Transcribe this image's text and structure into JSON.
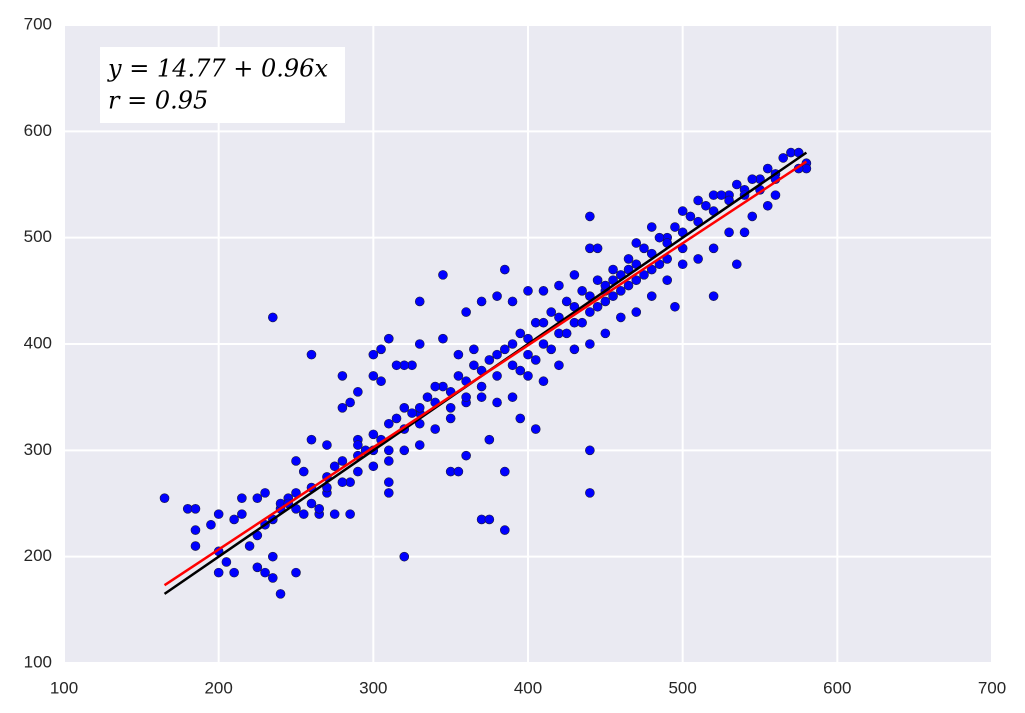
{
  "chart_data": {
    "type": "scatter",
    "annotations": [
      "y = 14.77 + 0.96x",
      "r = 0.95"
    ],
    "xlim": [
      100,
      700
    ],
    "xticks": [
      100,
      200,
      300,
      400,
      500,
      600,
      700
    ],
    "ylim": [
      100,
      700
    ],
    "yticks": [
      100,
      200,
      300,
      400,
      500,
      600,
      700
    ],
    "grid": true,
    "series": [
      {
        "mode": "markers",
        "color": "#0000ff",
        "x": [
          165,
          180,
          185,
          185,
          185,
          195,
          200,
          200,
          200,
          205,
          210,
          210,
          215,
          215,
          220,
          225,
          225,
          230,
          230,
          235,
          235,
          240,
          235,
          250,
          260,
          255,
          260,
          270,
          280,
          285,
          290,
          300,
          305,
          310,
          320,
          330,
          345,
          370,
          375,
          385,
          385,
          440,
          440,
          440,
          520,
          535,
          495,
          385,
          405,
          395,
          375,
          360,
          350,
          355,
          265,
          275,
          285,
          310,
          310,
          330,
          345,
          330,
          325,
          320,
          315,
          300,
          305,
          280,
          290,
          300,
          250,
          245,
          250,
          260,
          270,
          275,
          285,
          290,
          295,
          360,
          370,
          380,
          390,
          400,
          410,
          420,
          430,
          440,
          445,
          450,
          455,
          465,
          470,
          480,
          490,
          500,
          510,
          520,
          530,
          540,
          550,
          560,
          570,
          575,
          580,
          580,
          575,
          560,
          555,
          545,
          540,
          530,
          520,
          510,
          500,
          490,
          480,
          470,
          460,
          450,
          440,
          430,
          420,
          410,
          400,
          390,
          380,
          370,
          360,
          350,
          340,
          330,
          320,
          310,
          300,
          290,
          280,
          270,
          260,
          250,
          240,
          235,
          230,
          225,
          240,
          245,
          255,
          265,
          270,
          280,
          290,
          300,
          305,
          310,
          315,
          320,
          325,
          330,
          335,
          340,
          345,
          350,
          355,
          360,
          365,
          370,
          375,
          380,
          385,
          390,
          395,
          400,
          405,
          410,
          415,
          420,
          425,
          430,
          435,
          440,
          445,
          450,
          455,
          460,
          465,
          470,
          475,
          480,
          485,
          490,
          495,
          500,
          505,
          510,
          515,
          520,
          525,
          530,
          535,
          540,
          545,
          550,
          555,
          560,
          565,
          350,
          360,
          370,
          380,
          390,
          400,
          410,
          420,
          430,
          440,
          450,
          460,
          470,
          480,
          490,
          500,
          340,
          330,
          320,
          310,
          355,
          365,
          395,
          405,
          415,
          425,
          435,
          445,
          455,
          465,
          475,
          485
        ],
        "values": [
          255,
          245,
          245,
          210,
          225,
          230,
          240,
          205,
          185,
          195,
          185,
          235,
          240,
          255,
          210,
          190,
          255,
          260,
          185,
          180,
          200,
          165,
          425,
          185,
          390,
          280,
          310,
          305,
          370,
          345,
          355,
          390,
          395,
          405,
          200,
          440,
          465,
          235,
          235,
          225,
          280,
          260,
          300,
          520,
          445,
          475,
          435,
          470,
          320,
          330,
          310,
          295,
          280,
          280,
          240,
          240,
          240,
          270,
          260,
          335,
          405,
          400,
          380,
          380,
          380,
          370,
          365,
          340,
          310,
          285,
          290,
          255,
          260,
          265,
          260,
          285,
          270,
          305,
          300,
          430,
          440,
          445,
          440,
          450,
          450,
          455,
          465,
          490,
          490,
          450,
          460,
          470,
          495,
          510,
          500,
          525,
          535,
          540,
          540,
          545,
          555,
          560,
          580,
          580,
          570,
          565,
          565,
          540,
          530,
          520,
          505,
          505,
          490,
          480,
          475,
          460,
          445,
          430,
          425,
          410,
          400,
          395,
          380,
          365,
          370,
          350,
          345,
          350,
          345,
          330,
          320,
          305,
          300,
          290,
          300,
          280,
          270,
          265,
          250,
          245,
          245,
          235,
          230,
          220,
          250,
          250,
          240,
          245,
          275,
          290,
          295,
          315,
          310,
          325,
          330,
          320,
          335,
          340,
          350,
          345,
          360,
          355,
          370,
          365,
          380,
          375,
          385,
          390,
          395,
          400,
          410,
          405,
          420,
          420,
          430,
          425,
          440,
          435,
          450,
          445,
          460,
          455,
          470,
          465,
          480,
          475,
          490,
          485,
          500,
          495,
          510,
          505,
          520,
          515,
          530,
          525,
          540,
          535,
          550,
          540,
          555,
          545,
          565,
          555,
          575,
          340,
          350,
          360,
          370,
          380,
          390,
          400,
          410,
          420,
          430,
          440,
          450,
          460,
          470,
          480,
          490,
          360,
          325,
          340,
          300,
          390,
          395,
          375,
          385,
          395,
          410,
          420,
          435,
          445,
          455,
          465,
          475
        ]
      },
      {
        "mode": "line",
        "color": "#000000",
        "x": [
          165,
          580
        ],
        "values": [
          165,
          580
        ]
      },
      {
        "mode": "line",
        "color": "#ff0000",
        "x": [
          165,
          580
        ],
        "values": [
          173.17,
          571.57
        ]
      }
    ]
  }
}
